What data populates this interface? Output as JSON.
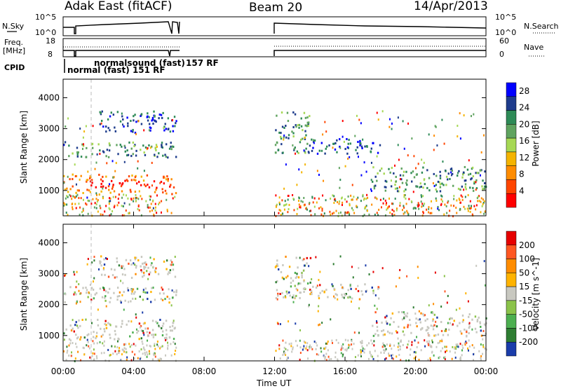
{
  "header": {
    "station": "Adak East (fitACF)",
    "beam": "Beam 20",
    "date": "14/Apr/2013"
  },
  "labels": {
    "nsky": "N.Sky",
    "nsky_ticks": [
      "10^5",
      "10^0"
    ],
    "freq_line1": "Freq.",
    "freq_line2": "[MHz]",
    "freq_ticks": [
      "18",
      "8"
    ],
    "cpid": "CPID",
    "nsearch": "N.Search",
    "nsearch_ticks": [
      "10^5",
      "10^0"
    ],
    "nave": "Nave",
    "nave_ticks": [
      "60",
      "0"
    ],
    "cpid_annotations": [
      "normal (fast) 151 RF",
      "normalsound (fast)",
      "157 RF"
    ]
  },
  "colors": {
    "power_scale": [
      "#0000ff",
      "#1e3c8c",
      "#2e8b57",
      "#5fa35f",
      "#a6d854",
      "#f4b400",
      "#ff8c00",
      "#ff4500",
      "#ff0000"
    ],
    "velocity_scale": [
      "#1a3caa",
      "#2e7d32",
      "#4caf50",
      "#8bc34a",
      "#c8c8c0",
      "#ffb300",
      "#ff8c00",
      "#ff5722",
      "#e60000"
    ]
  },
  "chart_data": [
    {
      "type": "heatmap",
      "name": "power",
      "xlabel": "Time UT",
      "ylabel": "Slant Range [km]",
      "x_ticks": [
        "00:00",
        "04:00",
        "08:00",
        "12:00",
        "16:00",
        "20:00",
        "00:00"
      ],
      "xlim_hours": [
        0,
        24
      ],
      "ylim_km": [
        180,
        4600
      ],
      "y_ticks": [
        1000,
        2000,
        3000,
        4000
      ],
      "colorbar": {
        "label": "Power [dB]",
        "ticks": [
          4,
          8,
          12,
          16,
          20,
          24,
          28
        ],
        "range": [
          0,
          30
        ]
      },
      "data_gaps_hours": [
        [
          6.4,
          12.0
        ]
      ],
      "bands": [
        {
          "t0": 0.0,
          "t1": 6.4,
          "r0": 900,
          "r1": 1550,
          "level": "high"
        },
        {
          "t0": 0.0,
          "t1": 6.4,
          "r0": 2100,
          "r1": 2600,
          "level": "mid"
        },
        {
          "t0": 2.0,
          "t1": 6.4,
          "r0": 2900,
          "r1": 3600,
          "level": "low"
        },
        {
          "t0": 12.0,
          "t1": 14.0,
          "r0": 2200,
          "r1": 3600,
          "level": "mid"
        },
        {
          "t0": 14.0,
          "t1": 18.0,
          "r0": 2200,
          "r1": 2700,
          "level": "low"
        },
        {
          "t0": 17.5,
          "t1": 24.0,
          "r0": 1000,
          "r1": 1800,
          "level": "mid"
        }
      ]
    },
    {
      "type": "heatmap",
      "name": "velocity",
      "xlabel": "Time UT",
      "ylabel": "Slant Range [km]",
      "x_ticks": [
        "00:00",
        "04:00",
        "08:00",
        "12:00",
        "16:00",
        "20:00",
        "00:00"
      ],
      "xlim_hours": [
        0,
        24
      ],
      "ylim_km": [
        180,
        4600
      ],
      "y_ticks": [
        1000,
        2000,
        3000,
        4000
      ],
      "colorbar": {
        "label": "Velocity [m s^-1]",
        "ticks": [
          200,
          100,
          50,
          15,
          -15,
          -50,
          -100,
          -200
        ],
        "range": [
          -250,
          250
        ]
      }
    }
  ]
}
